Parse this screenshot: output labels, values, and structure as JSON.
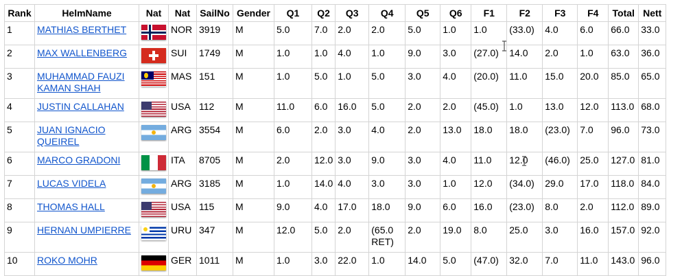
{
  "table": {
    "headers": [
      "Rank",
      "HelmName",
      "Nat",
      "Nat",
      "SailNo",
      "Gender",
      "Q1",
      "Q2",
      "Q3",
      "Q4",
      "Q5",
      "Q6",
      "F1",
      "F2",
      "F3",
      "F4",
      "Total",
      "Nett"
    ],
    "rows": [
      {
        "rank": "1",
        "helm": "MATHIAS BERTHET",
        "flag": "flag-nor",
        "nat": "NOR",
        "sail": "3919",
        "gender": "M",
        "q1": "5.0",
        "q2": "7.0",
        "q3": "2.0",
        "q4": "2.0",
        "q5": "5.0",
        "q6": "1.0",
        "f1": "1.0",
        "f2": "(33.0)",
        "f3": "4.0",
        "f4": "6.0",
        "total": "66.0",
        "nett": "33.0"
      },
      {
        "rank": "2",
        "helm": "MAX WALLENBERG",
        "flag": "flag-sui",
        "nat": "SUI",
        "sail": "1749",
        "gender": "M",
        "q1": "1.0",
        "q2": "1.0",
        "q3": "4.0",
        "q4": "1.0",
        "q5": "9.0",
        "q6": "3.0",
        "f1": "(27.0)",
        "f2": "14.0",
        "f3": "2.0",
        "f4": "1.0",
        "total": "63.0",
        "nett": "36.0"
      },
      {
        "rank": "3",
        "helm": "MUHAMMAD FAUZI KAMAN SHAH",
        "flag": "flag-mas",
        "nat": "MAS",
        "sail": "151",
        "gender": "M",
        "q1": "1.0",
        "q2": "5.0",
        "q3": "1.0",
        "q4": "5.0",
        "q5": "3.0",
        "q6": "4.0",
        "f1": "(20.0)",
        "f2": "11.0",
        "f3": "15.0",
        "f4": "20.0",
        "total": "85.0",
        "nett": "65.0"
      },
      {
        "rank": "4",
        "helm": "JUSTIN CALLAHAN",
        "flag": "flag-usa",
        "nat": "USA",
        "sail": "112",
        "gender": "M",
        "q1": "11.0",
        "q2": "6.0",
        "q3": "16.0",
        "q4": "5.0",
        "q5": "2.0",
        "q6": "2.0",
        "f1": "(45.0)",
        "f2": "1.0",
        "f3": "13.0",
        "f4": "12.0",
        "total": "113.0",
        "nett": "68.0"
      },
      {
        "rank": "5",
        "helm": "JUAN IGNACIO QUEIREL",
        "flag": "flag-arg",
        "nat": "ARG",
        "sail": "3554",
        "gender": "M",
        "q1": "6.0",
        "q2": "2.0",
        "q3": "3.0",
        "q4": "4.0",
        "q5": "2.0",
        "q6": "13.0",
        "f1": "18.0",
        "f2": "18.0",
        "f3": "(23.0)",
        "f4": "7.0",
        "total": "96.0",
        "nett": "73.0"
      },
      {
        "rank": "6",
        "helm": "MARCO GRADONI",
        "flag": "flag-ita",
        "nat": "ITA",
        "sail": "8705",
        "gender": "M",
        "q1": "2.0",
        "q2": "12.0",
        "q3": "3.0",
        "q4": "9.0",
        "q5": "3.0",
        "q6": "4.0",
        "f1": "11.0",
        "f2": "12.0",
        "f3": "(46.0)",
        "f4": "25.0",
        "total": "127.0",
        "nett": "81.0"
      },
      {
        "rank": "7",
        "helm": "LUCAS VIDELA",
        "flag": "flag-arg",
        "nat": "ARG",
        "sail": "3185",
        "gender": "M",
        "q1": "1.0",
        "q2": "14.0",
        "q3": "4.0",
        "q4": "3.0",
        "q5": "3.0",
        "q6": "1.0",
        "f1": "12.0",
        "f2": "(34.0)",
        "f3": "29.0",
        "f4": "17.0",
        "total": "118.0",
        "nett": "84.0"
      },
      {
        "rank": "8",
        "helm": "THOMAS HALL",
        "flag": "flag-usa",
        "nat": "USA",
        "sail": "115",
        "gender": "M",
        "q1": "9.0",
        "q2": "4.0",
        "q3": "17.0",
        "q4": "18.0",
        "q5": "9.0",
        "q6": "6.0",
        "f1": "16.0",
        "f2": "(23.0)",
        "f3": "8.0",
        "f4": "2.0",
        "total": "112.0",
        "nett": "89.0"
      },
      {
        "rank": "9",
        "helm": "HERNAN UMPIERRE",
        "flag": "flag-uru",
        "nat": "URU",
        "sail": "347",
        "gender": "M",
        "q1": "12.0",
        "q2": "5.0",
        "q3": "2.0",
        "q4": "(65.0 RET)",
        "q5": "2.0",
        "q6": "19.0",
        "f1": "8.0",
        "f2": "25.0",
        "f3": "3.0",
        "f4": "16.0",
        "total": "157.0",
        "nett": "92.0"
      },
      {
        "rank": "10",
        "helm": "ROKO MOHR",
        "flag": "flag-ger",
        "nat": "GER",
        "sail": "1011",
        "gender": "M",
        "q1": "1.0",
        "q2": "3.0",
        "q3": "22.0",
        "q4": "1.0",
        "q5": "14.0",
        "q6": "5.0",
        "f1": "(47.0)",
        "f2": "32.0",
        "f3": "7.0",
        "f4": "11.0",
        "total": "143.0",
        "nett": "96.0"
      }
    ]
  },
  "colors": {
    "link": "#1155cc",
    "border": "#d4d4d4"
  }
}
